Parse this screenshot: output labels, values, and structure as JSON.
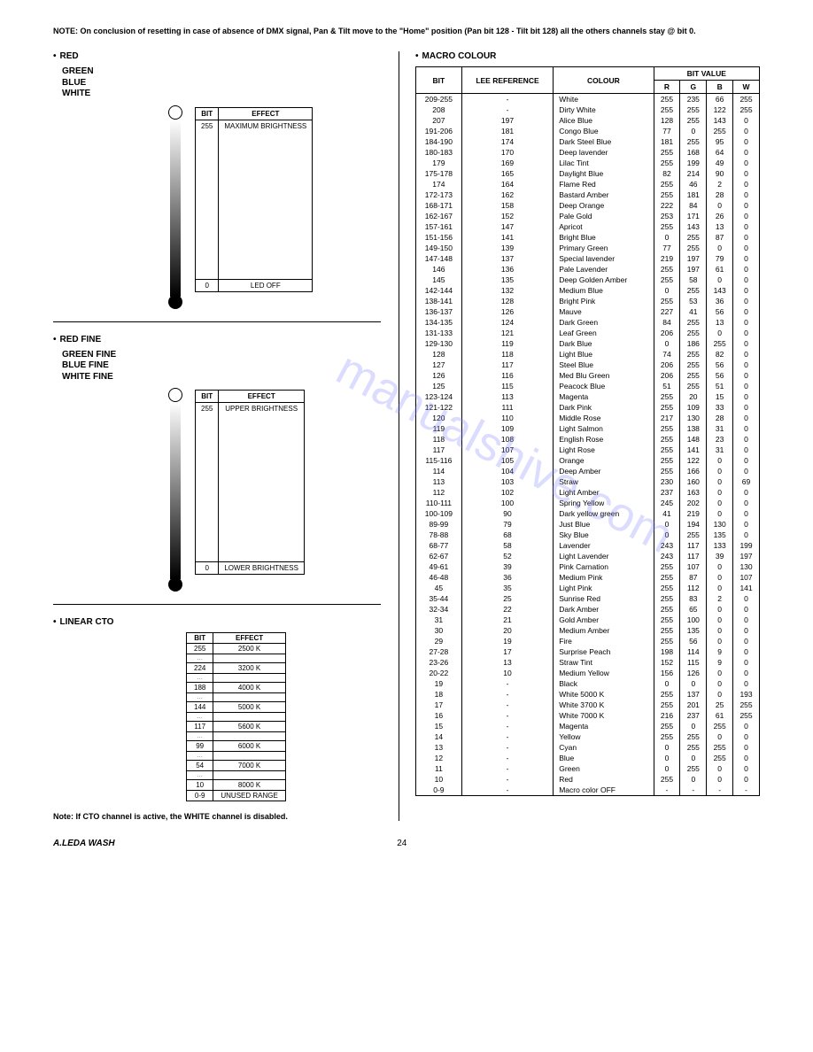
{
  "note_top": "NOTE: On conclusion of resetting in case of absence of DMX signal, Pan & Tilt move to the \"Home\" position (Pan bit 128 - Tilt bit 128) all the others channels stay @ bit 0.",
  "left": {
    "rgbw": {
      "labels": [
        "RED",
        "GREEN",
        "BLUE",
        "WHITE"
      ],
      "table_headers": [
        "BIT",
        "EFFECT"
      ],
      "top_row": [
        "255",
        "MAXIMUM BRIGHTNESS"
      ],
      "bot_row": [
        "0",
        "LED OFF"
      ]
    },
    "rgbw_fine": {
      "labels": [
        "RED FINE",
        "GREEN FINE",
        "BLUE FINE",
        "WHITE FINE"
      ],
      "table_headers": [
        "BIT",
        "EFFECT"
      ],
      "top_row": [
        "255",
        "UPPER BRIGHTNESS"
      ],
      "bot_row": [
        "0",
        "LOWER BRIGHTNESS"
      ]
    },
    "cto": {
      "title": "LINEAR CTO",
      "headers": [
        "BIT",
        "EFFECT"
      ],
      "rows": [
        [
          "255",
          "2500 K"
        ],
        [
          "…",
          ""
        ],
        [
          "224",
          "3200 K"
        ],
        [
          "…",
          ""
        ],
        [
          "188",
          "4000 K"
        ],
        [
          "…",
          ""
        ],
        [
          "144",
          "5000 K"
        ],
        [
          "…",
          ""
        ],
        [
          "117",
          "5600 K"
        ],
        [
          "…",
          ""
        ],
        [
          "99",
          "6000 K"
        ],
        [
          "…",
          ""
        ],
        [
          "54",
          "7000 K"
        ],
        [
          "…",
          ""
        ],
        [
          "10",
          "8000 K"
        ],
        [
          "0-9",
          "UNUSED RANGE"
        ]
      ],
      "note": "Note: If CTO channel is active, the WHITE channel is disabled."
    }
  },
  "macro": {
    "title": "MACRO COLOUR",
    "headers": {
      "bit": "BIT",
      "lee": "LEE REFERENCE",
      "colour": "COLOUR",
      "bitvalue": "BIT VALUE",
      "r": "R",
      "g": "G",
      "b": "B",
      "w": "W"
    },
    "rows": [
      [
        "209-255",
        "-",
        "White",
        "255",
        "235",
        "66",
        "255"
      ],
      [
        "208",
        "-",
        "Dirty White",
        "255",
        "255",
        "122",
        "255"
      ],
      [
        "207",
        "197",
        "Alice Blue",
        "128",
        "255",
        "143",
        "0"
      ],
      [
        "191-206",
        "181",
        "Congo Blue",
        "77",
        "0",
        "255",
        "0"
      ],
      [
        "184-190",
        "174",
        "Dark Steel Blue",
        "181",
        "255",
        "95",
        "0"
      ],
      [
        "180-183",
        "170",
        "Deep lavender",
        "255",
        "168",
        "64",
        "0"
      ],
      [
        "179",
        "169",
        "Lilac Tint",
        "255",
        "199",
        "49",
        "0"
      ],
      [
        "175-178",
        "165",
        "Daylight Blue",
        "82",
        "214",
        "90",
        "0"
      ],
      [
        "174",
        "164",
        "Flame Red",
        "255",
        "46",
        "2",
        "0"
      ],
      [
        "172-173",
        "162",
        "Bastard Amber",
        "255",
        "181",
        "28",
        "0"
      ],
      [
        "168-171",
        "158",
        "Deep Orange",
        "222",
        "84",
        "0",
        "0"
      ],
      [
        "162-167",
        "152",
        "Pale Gold",
        "253",
        "171",
        "26",
        "0"
      ],
      [
        "157-161",
        "147",
        "Apricot",
        "255",
        "143",
        "13",
        "0"
      ],
      [
        "151-156",
        "141",
        "Bright Blue",
        "0",
        "255",
        "87",
        "0"
      ],
      [
        "149-150",
        "139",
        "Primary Green",
        "77",
        "255",
        "0",
        "0"
      ],
      [
        "147-148",
        "137",
        "Special lavender",
        "219",
        "197",
        "79",
        "0"
      ],
      [
        "146",
        "136",
        "Pale Lavender",
        "255",
        "197",
        "61",
        "0"
      ],
      [
        "145",
        "135",
        "Deep Golden Amber",
        "255",
        "58",
        "0",
        "0"
      ],
      [
        "142-144",
        "132",
        "Medium Blue",
        "0",
        "255",
        "143",
        "0"
      ],
      [
        "138-141",
        "128",
        "Bright Pink",
        "255",
        "53",
        "36",
        "0"
      ],
      [
        "136-137",
        "126",
        "Mauve",
        "227",
        "41",
        "56",
        "0"
      ],
      [
        "134-135",
        "124",
        "Dark Green",
        "84",
        "255",
        "13",
        "0"
      ],
      [
        "131-133",
        "121",
        "Leaf Green",
        "206",
        "255",
        "0",
        "0"
      ],
      [
        "129-130",
        "119",
        "Dark Blue",
        "0",
        "186",
        "255",
        "0"
      ],
      [
        "128",
        "118",
        "Light Blue",
        "74",
        "255",
        "82",
        "0"
      ],
      [
        "127",
        "117",
        "Steel Blue",
        "206",
        "255",
        "56",
        "0"
      ],
      [
        "126",
        "116",
        "Med Blu Green",
        "206",
        "255",
        "56",
        "0"
      ],
      [
        "125",
        "115",
        "Peacock Blue",
        "51",
        "255",
        "51",
        "0"
      ],
      [
        "123-124",
        "113",
        "Magenta",
        "255",
        "20",
        "15",
        "0"
      ],
      [
        "121-122",
        "111",
        "Dark Pink",
        "255",
        "109",
        "33",
        "0"
      ],
      [
        "120",
        "110",
        "Middle Rose",
        "217",
        "130",
        "28",
        "0"
      ],
      [
        "119",
        "109",
        "Light Salmon",
        "255",
        "138",
        "31",
        "0"
      ],
      [
        "118",
        "108",
        "English Rose",
        "255",
        "148",
        "23",
        "0"
      ],
      [
        "117",
        "107",
        "Light Rose",
        "255",
        "141",
        "31",
        "0"
      ],
      [
        "115-116",
        "105",
        "Orange",
        "255",
        "122",
        "0",
        "0"
      ],
      [
        "114",
        "104",
        "Deep Amber",
        "255",
        "166",
        "0",
        "0"
      ],
      [
        "113",
        "103",
        "Straw",
        "230",
        "160",
        "0",
        "69"
      ],
      [
        "112",
        "102",
        "Light Amber",
        "237",
        "163",
        "0",
        "0"
      ],
      [
        "110-111",
        "100",
        "Spring Yellow",
        "245",
        "202",
        "0",
        "0"
      ],
      [
        "100-109",
        "90",
        "Dark yellow green",
        "41",
        "219",
        "0",
        "0"
      ],
      [
        "89-99",
        "79",
        "Just Blue",
        "0",
        "194",
        "130",
        "0"
      ],
      [
        "78-88",
        "68",
        "Sky Blue",
        "0",
        "255",
        "135",
        "0"
      ],
      [
        "68-77",
        "58",
        "Lavender",
        "243",
        "117",
        "133",
        "199"
      ],
      [
        "62-67",
        "52",
        "Light Lavender",
        "243",
        "117",
        "39",
        "197"
      ],
      [
        "49-61",
        "39",
        "Pink Carnation",
        "255",
        "107",
        "0",
        "130"
      ],
      [
        "46-48",
        "36",
        "Medium Pink",
        "255",
        "87",
        "0",
        "107"
      ],
      [
        "45",
        "35",
        "Light Pink",
        "255",
        "112",
        "0",
        "141"
      ],
      [
        "35-44",
        "25",
        "Sunrise Red",
        "255",
        "83",
        "2",
        "0"
      ],
      [
        "32-34",
        "22",
        "Dark Amber",
        "255",
        "65",
        "0",
        "0"
      ],
      [
        "31",
        "21",
        "Gold Amber",
        "255",
        "100",
        "0",
        "0"
      ],
      [
        "30",
        "20",
        "Medium Amber",
        "255",
        "135",
        "0",
        "0"
      ],
      [
        "29",
        "19",
        "Fire",
        "255",
        "56",
        "0",
        "0"
      ],
      [
        "27-28",
        "17",
        "Surprise Peach",
        "198",
        "114",
        "9",
        "0"
      ],
      [
        "23-26",
        "13",
        "Straw Tint",
        "152",
        "115",
        "9",
        "0"
      ],
      [
        "20-22",
        "10",
        "Medium Yellow",
        "156",
        "126",
        "0",
        "0"
      ],
      [
        "19",
        "-",
        "Black",
        "0",
        "0",
        "0",
        "0"
      ],
      [
        "18",
        "-",
        "White 5000 K",
        "255",
        "137",
        "0",
        "193"
      ],
      [
        "17",
        "-",
        "White 3700 K",
        "255",
        "201",
        "25",
        "255"
      ],
      [
        "16",
        "-",
        "White 7000 K",
        "216",
        "237",
        "61",
        "255"
      ],
      [
        "15",
        "-",
        "Magenta",
        "255",
        "0",
        "255",
        "0"
      ],
      [
        "14",
        "-",
        "Yellow",
        "255",
        "255",
        "0",
        "0"
      ],
      [
        "13",
        "-",
        "Cyan",
        "0",
        "255",
        "255",
        "0"
      ],
      [
        "12",
        "-",
        "Blue",
        "0",
        "0",
        "255",
        "0"
      ],
      [
        "11",
        "-",
        "Green",
        "0",
        "255",
        "0",
        "0"
      ],
      [
        "10",
        "-",
        "Red",
        "255",
        "0",
        "0",
        "0"
      ],
      [
        "0-9",
        "-",
        "Macro color OFF",
        "-",
        "-",
        "-",
        "-"
      ]
    ]
  },
  "watermark": "manualshive.com",
  "footer": {
    "left": "A.LEDA WASH",
    "page": "24"
  }
}
